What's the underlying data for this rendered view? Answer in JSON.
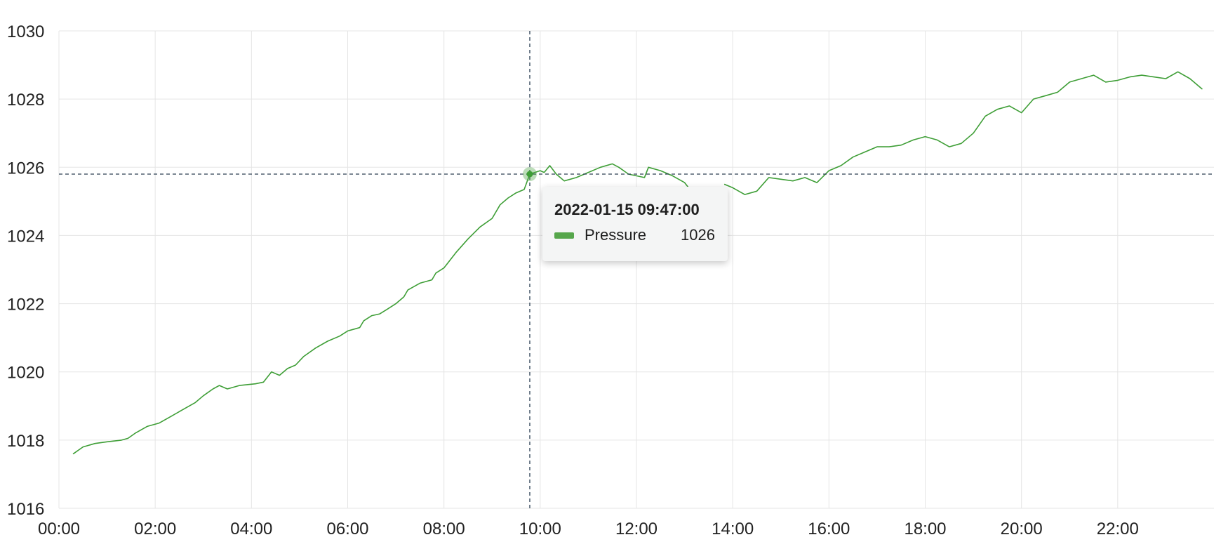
{
  "colors": {
    "series": "#3e9e36",
    "tooltip_swatch": "#56a64b",
    "crosshair": "#2b3f52",
    "grid": "#e5e5e5"
  },
  "tooltip": {
    "timestamp": "2022-01-15 09:47:00",
    "series_label": "Pressure",
    "value": "1026"
  },
  "chart_data": {
    "type": "line",
    "grid": true,
    "ylim": [
      1016,
      1030
    ],
    "y_ticks": [
      "1016",
      "1018",
      "1020",
      "1022",
      "1024",
      "1026",
      "1028",
      "1030"
    ],
    "x_range": [
      "2022-01-15 00:00",
      "2022-01-15 24:00"
    ],
    "x_ticks": [
      "00:00",
      "02:00",
      "04:00",
      "06:00",
      "08:00",
      "10:00",
      "12:00",
      "14:00",
      "16:00",
      "18:00",
      "20:00",
      "22:00"
    ],
    "hover": {
      "x": "2022-01-15 09:47",
      "y": 1025.8
    },
    "series": [
      {
        "color": "#3e9e36",
        "x": [
          "2022-01-15 00:18",
          "2022-01-15 00:30",
          "2022-01-15 00:45",
          "2022-01-15 01:00",
          "2022-01-15 01:18",
          "2022-01-15 01:26",
          "2022-01-15 01:35",
          "2022-01-15 01:50",
          "2022-01-15 02:05",
          "2022-01-15 02:20",
          "2022-01-15 02:35",
          "2022-01-15 02:50",
          "2022-01-15 03:00",
          "2022-01-15 03:12",
          "2022-01-15 03:20",
          "2022-01-15 03:30",
          "2022-01-15 03:45",
          "2022-01-15 04:05",
          "2022-01-15 04:15",
          "2022-01-15 04:25",
          "2022-01-15 04:35",
          "2022-01-15 04:45",
          "2022-01-15 04:55",
          "2022-01-15 05:05",
          "2022-01-15 05:20",
          "2022-01-15 05:35",
          "2022-01-15 05:50",
          "2022-01-15 06:00",
          "2022-01-15 06:15",
          "2022-01-15 06:20",
          "2022-01-15 06:30",
          "2022-01-15 06:40",
          "2022-01-15 06:50",
          "2022-01-15 07:00",
          "2022-01-15 07:10",
          "2022-01-15 07:15",
          "2022-01-15 07:30",
          "2022-01-15 07:45",
          "2022-01-15 07:50",
          "2022-01-15 08:00",
          "2022-01-15 08:15",
          "2022-01-15 08:30",
          "2022-01-15 08:45",
          "2022-01-15 09:00",
          "2022-01-15 09:10",
          "2022-01-15 09:20",
          "2022-01-15 09:30",
          "2022-01-15 09:40",
          "2022-01-15 09:47",
          "2022-01-15 10:00",
          "2022-01-15 10:05",
          "2022-01-15 10:12",
          "2022-01-15 10:20",
          "2022-01-15 10:30",
          "2022-01-15 10:45",
          "2022-01-15 11:00",
          "2022-01-15 11:15",
          "2022-01-15 11:30",
          "2022-01-15 11:38",
          "2022-01-15 11:50",
          "2022-01-15 12:10",
          "2022-01-15 12:15",
          "2022-01-15 12:30",
          "2022-01-15 12:45",
          "2022-01-15 13:00",
          "2022-01-15 13:05"
        ],
        "y": [
          1017.6,
          1017.8,
          1017.9,
          1017.95,
          1018.0,
          1018.05,
          1018.2,
          1018.4,
          1018.5,
          1018.7,
          1018.9,
          1019.1,
          1019.3,
          1019.5,
          1019.6,
          1019.5,
          1019.6,
          1019.65,
          1019.7,
          1020.0,
          1019.9,
          1020.1,
          1020.2,
          1020.45,
          1020.7,
          1020.9,
          1021.05,
          1021.2,
          1021.3,
          1021.5,
          1021.65,
          1021.7,
          1021.85,
          1022.0,
          1022.2,
          1022.4,
          1022.6,
          1022.7,
          1022.9,
          1023.05,
          1023.5,
          1023.9,
          1024.25,
          1024.5,
          1024.9,
          1025.1,
          1025.25,
          1025.35,
          1025.8,
          1025.9,
          1025.85,
          1026.05,
          1025.8,
          1025.6,
          1025.7,
          1025.85,
          1026.0,
          1026.1,
          1026.0,
          1025.8,
          1025.7,
          1026.0,
          1025.9,
          1025.75,
          1025.55,
          1025.4
        ]
      },
      {
        "color": "#3e9e36",
        "x": [
          "2022-01-15 13:50",
          "2022-01-15 14:00",
          "2022-01-15 14:15",
          "2022-01-15 14:30",
          "2022-01-15 14:45",
          "2022-01-15 15:00",
          "2022-01-15 15:15",
          "2022-01-15 15:30",
          "2022-01-15 15:45",
          "2022-01-15 16:00",
          "2022-01-15 16:15",
          "2022-01-15 16:30",
          "2022-01-15 16:45",
          "2022-01-15 17:00",
          "2022-01-15 17:15",
          "2022-01-15 17:30",
          "2022-01-15 17:45",
          "2022-01-15 18:00",
          "2022-01-15 18:15",
          "2022-01-15 18:30",
          "2022-01-15 18:45",
          "2022-01-15 19:00",
          "2022-01-15 19:15",
          "2022-01-15 19:30",
          "2022-01-15 19:45",
          "2022-01-15 20:00",
          "2022-01-15 20:15",
          "2022-01-15 20:30",
          "2022-01-15 20:45",
          "2022-01-15 21:00",
          "2022-01-15 21:15",
          "2022-01-15 21:30",
          "2022-01-15 21:45",
          "2022-01-15 22:00",
          "2022-01-15 22:15",
          "2022-01-15 22:30",
          "2022-01-15 22:45",
          "2022-01-15 23:00",
          "2022-01-15 23:15",
          "2022-01-15 23:30",
          "2022-01-15 23:45"
        ],
        "y": [
          1025.5,
          1025.4,
          1025.2,
          1025.3,
          1025.7,
          1025.65,
          1025.6,
          1025.7,
          1025.55,
          1025.9,
          1026.05,
          1026.3,
          1026.45,
          1026.6,
          1026.6,
          1026.65,
          1026.8,
          1026.9,
          1026.8,
          1026.6,
          1026.7,
          1027.0,
          1027.5,
          1027.7,
          1027.8,
          1027.6,
          1028.0,
          1028.1,
          1028.2,
          1028.5,
          1028.6,
          1028.7,
          1028.5,
          1028.55,
          1028.65,
          1028.7,
          1028.65,
          1028.6,
          1028.8,
          1028.6,
          1028.3
        ]
      }
    ]
  }
}
